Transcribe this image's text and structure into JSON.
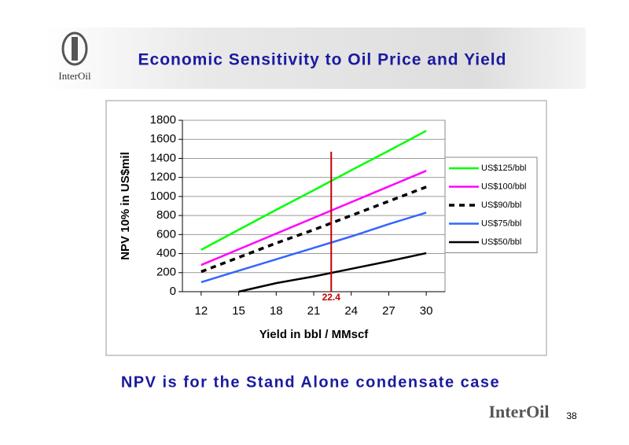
{
  "header": {
    "title": "Economic Sensitivity to Oil Price and Yield",
    "logo_text": "InterOil"
  },
  "chart_data": {
    "type": "line",
    "x_label": "Yield in bbl / MMscf",
    "y_label": "NPV 10% in US$mil",
    "x": [
      12,
      15,
      18,
      21,
      24,
      27,
      30
    ],
    "xlim": [
      10.5,
      31.5
    ],
    "xticks": [
      12,
      15,
      18,
      21,
      24,
      27,
      30
    ],
    "ylim": [
      0,
      1800
    ],
    "yticks": [
      0,
      200,
      400,
      600,
      800,
      1000,
      1200,
      1400,
      1600,
      1800
    ],
    "grid": true,
    "legend": "right",
    "series": [
      {
        "name": "US$125/bbl",
        "color": "#00ff00",
        "values": [
          440,
          650,
          860,
          1065,
          1275,
          1480,
          1690
        ]
      },
      {
        "name": "US$100/bbl",
        "color": "#ff00ff",
        "values": [
          280,
          445,
          610,
          775,
          940,
          1105,
          1270
        ]
      },
      {
        "name": "US$90/bbl",
        "color": "#000000",
        "dash": true,
        "values": [
          210,
          360,
          510,
          650,
          800,
          950,
          1100
        ]
      },
      {
        "name": "US$75/bbl",
        "color": "#3366ff",
        "values": [
          100,
          220,
          340,
          460,
          580,
          710,
          830
        ]
      },
      {
        "name": "US$50/bbl",
        "color": "#000000",
        "values": [
          null,
          0,
          90,
          160,
          240,
          320,
          405
        ]
      }
    ],
    "vline": {
      "x": 22.4,
      "top": 1470,
      "color": "#c00000"
    }
  },
  "footer": {
    "note": "NPV is for the Stand Alone condensate case",
    "logo_text": "InterOil",
    "page": "38"
  }
}
